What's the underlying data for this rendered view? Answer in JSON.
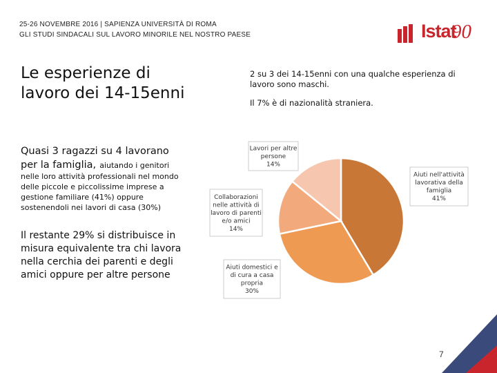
{
  "header": {
    "line1": "25-26 NOVEMBRE 2016 | SAPIENZA UNIVERSITÀ DI ROMA",
    "line2": "GLI STUDI SINDACALI SUL LAVORO MINORILE NEL NOSTRO PAESE"
  },
  "logo": {
    "text": "Istat",
    "number": "90"
  },
  "title": {
    "line1": "Le esperienze di",
    "line2": "lavoro dei 14-15enni"
  },
  "info": {
    "line1": "2 su 3 dei 14-15enni con una qualche esperienza di lavoro sono maschi.",
    "line2": "Il 7% è di nazionalità straniera."
  },
  "left_text": {
    "p1_big": "Quasi 3 ragazzi su 4 lavorano per la famiglia,",
    "p1_small_inline": "aiutando i genitori",
    "p1_small": "nelle loro attività professionali nel mondo delle piccole e piccolissime imprese a gestione familiare (41%) oppure sostenendoli nei lavori di casa (30%)",
    "p2": "Il restante 29% si distribuisce in misura equivalente tra chi lavora nella cerchia dei parenti e degli amici oppure per altre persone"
  },
  "page_number": "7",
  "colors": {
    "slice1": "#c87737",
    "slice2": "#ee9a52",
    "slice3": "#f2aa7c",
    "slice4": "#f6c6ae",
    "brand": "#c8262c"
  },
  "chart_data": {
    "type": "pie",
    "slices": [
      {
        "label": [
          "Aiuti nell'attività",
          "lavorativa della",
          "famiglia",
          "41%"
        ],
        "name": "Aiuti nell'attività lavorativa della famiglia",
        "value": 41
      },
      {
        "label": [
          "Aiuti domestici e",
          "di cura a casa",
          "propria",
          "30%"
        ],
        "name": "Aiuti domestici e di cura a casa propria",
        "value": 30
      },
      {
        "label": [
          "Collaborazioni",
          "nelle attività di",
          "lavoro di parenti",
          "e/o amici",
          "14%"
        ],
        "name": "Collaborazioni nelle attività di lavoro di parenti e/o amici",
        "value": 14
      },
      {
        "label": [
          "Lavori per altre",
          "persone",
          "14%"
        ],
        "name": "Lavori per altre persone",
        "value": 14
      }
    ]
  }
}
